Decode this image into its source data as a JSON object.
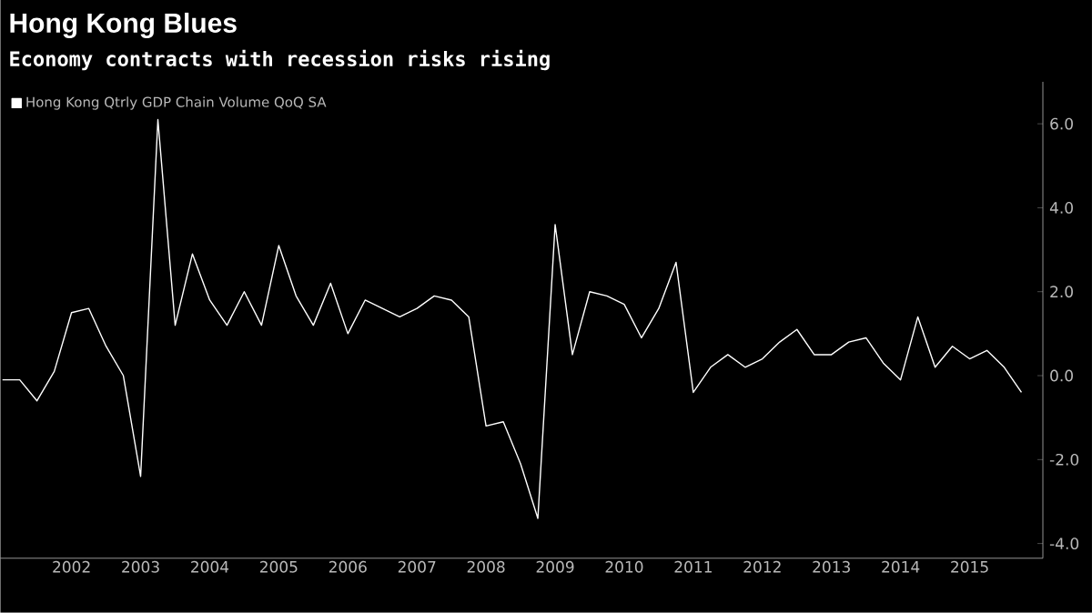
{
  "chart_data": {
    "type": "line",
    "title": "Hong Kong Blues",
    "subtitle": "Economy contracts with recession risks rising",
    "x": [
      2001.5,
      2001.75,
      2002,
      2002.25,
      2002.5,
      2002.75,
      2003,
      2003.25,
      2003.5,
      2003.75,
      2004,
      2004.25,
      2004.5,
      2004.75,
      2005,
      2005.25,
      2005.5,
      2005.75,
      2006,
      2006.25,
      2006.5,
      2006.75,
      2007,
      2007.25,
      2007.5,
      2007.75,
      2008,
      2008.25,
      2008.5,
      2008.75,
      2009,
      2009.25,
      2009.5,
      2009.75,
      2010,
      2010.25,
      2010.5,
      2010.75,
      2011,
      2011.25,
      2011.5,
      2011.75,
      2012,
      2012.25,
      2012.5,
      2012.75,
      2013,
      2013.25,
      2013.5,
      2013.75,
      2014,
      2014.25,
      2014.5,
      2014.75,
      2015,
      2015.25,
      2015.5,
      2015.75,
      2016,
      2016.25
    ],
    "series": [
      {
        "name": "Hong Kong Qtrly GDP Chain Volume QoQ SA",
        "color": "#ffffff",
        "values": [
          -0.1,
          -0.1,
          -0.6,
          0.1,
          1.5,
          1.6,
          0.7,
          0.0,
          -2.4,
          6.1,
          1.2,
          2.9,
          1.8,
          1.2,
          2.0,
          1.2,
          3.1,
          1.9,
          1.2,
          2.2,
          1.0,
          1.8,
          1.6,
          1.4,
          1.6,
          1.9,
          1.8,
          1.4,
          -1.2,
          -1.1,
          -2.1,
          -3.4,
          3.6,
          0.5,
          2.0,
          1.9,
          1.7,
          0.9,
          1.6,
          2.7,
          -0.4,
          0.2,
          0.5,
          0.2,
          0.4,
          0.8,
          1.1,
          0.5,
          0.5,
          0.8,
          0.9,
          0.3,
          -0.1,
          1.4,
          0.2,
          0.7,
          0.4,
          0.6,
          0.2,
          -0.4
        ]
      }
    ],
    "xlim": [
      2001.47,
      2016.56
    ],
    "xticks": [
      {
        "value": 2002.5,
        "label": "2002"
      },
      {
        "value": 2003.5,
        "label": "2003"
      },
      {
        "value": 2004.5,
        "label": "2004"
      },
      {
        "value": 2005.5,
        "label": "2005"
      },
      {
        "value": 2006.5,
        "label": "2006"
      },
      {
        "value": 2007.5,
        "label": "2007"
      },
      {
        "value": 2008.5,
        "label": "2008"
      },
      {
        "value": 2009.5,
        "label": "2009"
      },
      {
        "value": 2010.5,
        "label": "2010"
      },
      {
        "value": 2011.5,
        "label": "2011"
      },
      {
        "value": 2012.5,
        "label": "2012"
      },
      {
        "value": 2013.5,
        "label": "2013"
      },
      {
        "value": 2014.5,
        "label": "2014"
      },
      {
        "value": 2015.5,
        "label": "2015"
      }
    ],
    "ylim": [
      -4.35,
      7.0
    ],
    "yticks": [
      {
        "value": -4,
        "label": "-4.0"
      },
      {
        "value": -2,
        "label": "-2.0"
      },
      {
        "value": 0,
        "label": "0.0"
      },
      {
        "value": 2,
        "label": "2.0"
      },
      {
        "value": 4,
        "label": "4.0"
      },
      {
        "value": 6,
        "label": "6.0"
      }
    ],
    "legend": "top left",
    "grid": false,
    "marker": "none",
    "line_style": "solid"
  }
}
